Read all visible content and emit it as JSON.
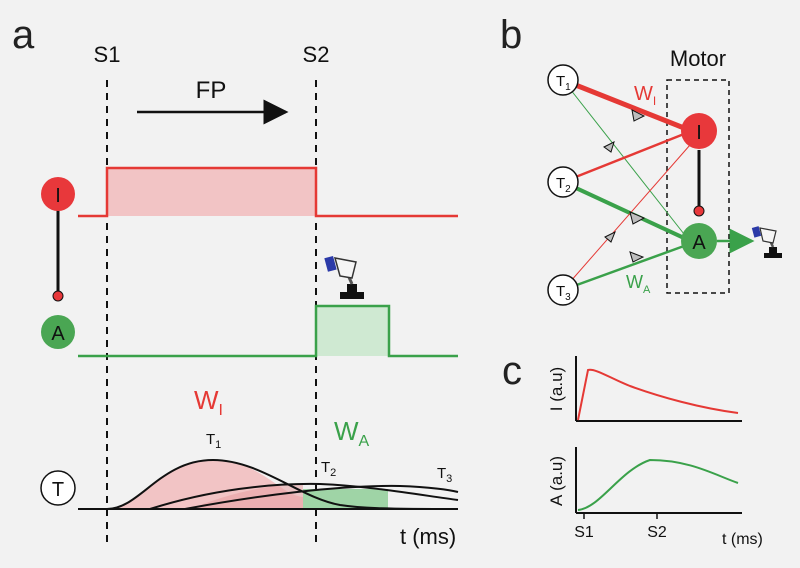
{
  "colors": {
    "red": "#e53935",
    "red_fill": "#f2c4c5",
    "green": "#3aa14a",
    "green_fill": "#cfe9d2",
    "neuron_red": "#e8383b",
    "neuron_green": "#4aa653",
    "black": "#111111",
    "gray": "#555555"
  },
  "panel_a": {
    "label": "a",
    "s1": "S1",
    "s2": "S2",
    "fp": "FP",
    "neuron_i": "I",
    "neuron_a": "A",
    "neuron_t": "T",
    "wi": "W",
    "wi_sub": "I",
    "wa": "W",
    "wa_sub": "A",
    "t1": "T",
    "t1_sub": "1",
    "t2": "T",
    "t2_sub": "2",
    "t3": "T",
    "t3_sub": "3",
    "xlabel": "t (ms)",
    "icons": [
      "joystick-icon"
    ]
  },
  "panel_b": {
    "label": "b",
    "motor": "Motor",
    "t1": "T",
    "t1_sub": "1",
    "t2": "T",
    "t2_sub": "2",
    "t3": "T",
    "t3_sub": "3",
    "neuron_i": "I",
    "neuron_a": "A",
    "wi": "W",
    "wi_sub": "I",
    "wa": "W",
    "wa_sub": "A"
  },
  "panel_c": {
    "label": "c",
    "ylabel_top": "I (a.u)",
    "ylabel_bottom": "A (a.u)",
    "xticks": [
      "S1",
      "S2"
    ],
    "xlabel": "t (ms)"
  }
}
